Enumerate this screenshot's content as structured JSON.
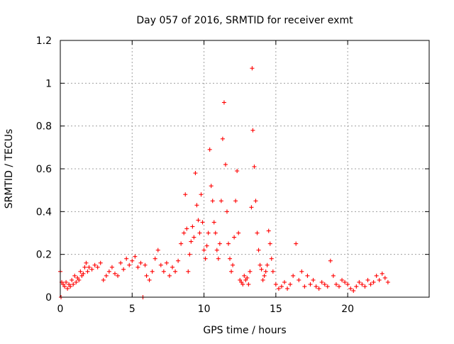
{
  "chart_data": {
    "type": "scatter",
    "title": "Day 057 of 2016, SRMTID for receiver exmt",
    "xlabel": "GPS time / hours",
    "ylabel": "SRMTID / TECUs",
    "xlim": [
      0,
      25.67
    ],
    "ylim": [
      0,
      1.2
    ],
    "x_ticks": [
      0,
      5,
      10,
      15,
      20
    ],
    "x_tick_labels": [
      "0",
      "5",
      "10",
      "15",
      "20"
    ],
    "y_ticks": [
      0,
      0.2,
      0.4,
      0.6,
      0.8,
      1,
      1.2
    ],
    "y_tick_labels": [
      "0",
      "0.2",
      "0.4",
      "0.6",
      "0.8",
      "1",
      "1.2"
    ],
    "grid": true,
    "marker": "plus",
    "marker_color": "#ff0000",
    "series": [
      {
        "name": "SRMTID",
        "x": [
          0.0,
          0.05,
          0.1,
          0.2,
          0.3,
          0.4,
          0.5,
          0.6,
          0.7,
          0.8,
          0.9,
          1.0,
          1.1,
          1.2,
          1.3,
          1.4,
          1.5,
          1.6,
          1.7,
          1.8,
          1.9,
          2.0,
          2.2,
          2.4,
          2.6,
          2.8,
          3.0,
          3.2,
          3.4,
          3.6,
          3.8,
          4.0,
          4.2,
          4.4,
          4.6,
          4.8,
          5.0,
          5.2,
          5.4,
          5.6,
          5.75,
          5.9,
          6.0,
          6.2,
          6.4,
          6.6,
          6.8,
          7.0,
          7.2,
          7.4,
          7.6,
          7.8,
          8.0,
          8.2,
          8.4,
          8.6,
          8.7,
          8.8,
          8.9,
          9.0,
          9.1,
          9.2,
          9.3,
          9.4,
          9.5,
          9.6,
          9.7,
          9.8,
          9.9,
          10.0,
          10.1,
          10.2,
          10.3,
          10.4,
          10.5,
          10.6,
          10.7,
          10.8,
          10.9,
          11.0,
          11.1,
          11.2,
          11.3,
          11.4,
          11.5,
          11.6,
          11.7,
          11.8,
          11.9,
          12.0,
          12.1,
          12.2,
          12.3,
          12.4,
          12.5,
          12.6,
          12.7,
          12.8,
          12.9,
          13.0,
          13.1,
          13.2,
          13.3,
          13.35,
          13.4,
          13.5,
          13.6,
          13.7,
          13.8,
          13.9,
          14.0,
          14.1,
          14.2,
          14.3,
          14.4,
          14.5,
          14.6,
          14.7,
          14.8,
          15.0,
          15.2,
          15.4,
          15.6,
          15.8,
          16.0,
          16.2,
          16.4,
          16.6,
          16.8,
          17.0,
          17.2,
          17.4,
          17.6,
          17.8,
          18.0,
          18.2,
          18.4,
          18.6,
          18.8,
          19.0,
          19.2,
          19.4,
          19.6,
          19.8,
          20.0,
          20.2,
          20.4,
          20.6,
          20.8,
          21.0,
          21.2,
          21.4,
          21.6,
          21.8,
          22.0,
          22.2,
          22.4,
          22.6,
          22.8
        ],
        "y": [
          0.12,
          0.0,
          0.07,
          0.06,
          0.05,
          0.07,
          0.04,
          0.06,
          0.05,
          0.08,
          0.06,
          0.1,
          0.07,
          0.09,
          0.08,
          0.12,
          0.1,
          0.11,
          0.14,
          0.16,
          0.12,
          0.14,
          0.13,
          0.15,
          0.14,
          0.16,
          0.08,
          0.1,
          0.12,
          0.14,
          0.11,
          0.1,
          0.16,
          0.13,
          0.18,
          0.15,
          0.17,
          0.19,
          0.14,
          0.16,
          0.0,
          0.15,
          0.1,
          0.08,
          0.12,
          0.18,
          0.22,
          0.15,
          0.12,
          0.16,
          0.1,
          0.14,
          0.12,
          0.17,
          0.25,
          0.3,
          0.48,
          0.32,
          0.12,
          0.2,
          0.26,
          0.33,
          0.28,
          0.58,
          0.43,
          0.36,
          0.3,
          0.48,
          0.35,
          0.22,
          0.18,
          0.24,
          0.3,
          0.69,
          0.52,
          0.45,
          0.35,
          0.3,
          0.22,
          0.18,
          0.25,
          0.45,
          0.74,
          0.91,
          0.62,
          0.4,
          0.25,
          0.18,
          0.12,
          0.15,
          0.28,
          0.45,
          0.59,
          0.3,
          0.08,
          0.07,
          0.06,
          0.1,
          0.08,
          0.09,
          0.06,
          0.12,
          0.42,
          1.07,
          0.78,
          0.61,
          0.45,
          0.3,
          0.22,
          0.15,
          0.13,
          0.08,
          0.1,
          0.12,
          0.15,
          0.31,
          0.25,
          0.18,
          0.12,
          0.06,
          0.04,
          0.05,
          0.07,
          0.04,
          0.06,
          0.1,
          0.25,
          0.08,
          0.12,
          0.05,
          0.1,
          0.06,
          0.08,
          0.05,
          0.04,
          0.07,
          0.06,
          0.05,
          0.17,
          0.1,
          0.06,
          0.05,
          0.08,
          0.07,
          0.06,
          0.04,
          0.03,
          0.05,
          0.07,
          0.06,
          0.05,
          0.08,
          0.06,
          0.07,
          0.1,
          0.08,
          0.11,
          0.09,
          0.07
        ]
      }
    ]
  }
}
